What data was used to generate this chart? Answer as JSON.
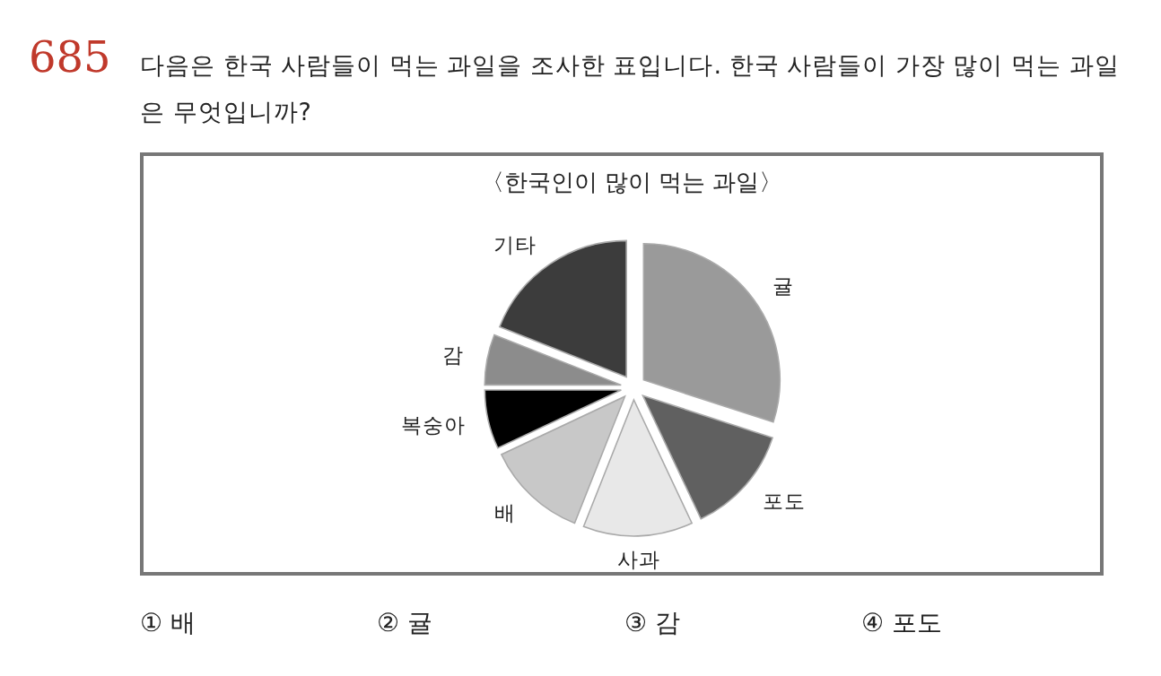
{
  "chart_data": {
    "type": "pie",
    "title": "〈한국인이 많이 먹는 과일〉",
    "categories": [
      "귤",
      "포도",
      "사과",
      "배",
      "복숭아",
      "감",
      "기타"
    ],
    "values": [
      30,
      13,
      13,
      12,
      7,
      6,
      19
    ],
    "colors": [
      "#9a9a9a",
      "#606060",
      "#e8e8e8",
      "#c8c8c8",
      "#000000",
      "#8c8c8c",
      "#3c3c3c"
    ],
    "annotations": [
      "685",
      "다음은 한국 사람들이 먹는 과일을 조사한 표입니다. 한국 사람들이 가장 많이 먹는 과일은 무엇입니까?",
      "① 배",
      "② 귤",
      "③ 감",
      "④ 포도"
    ]
  }
}
